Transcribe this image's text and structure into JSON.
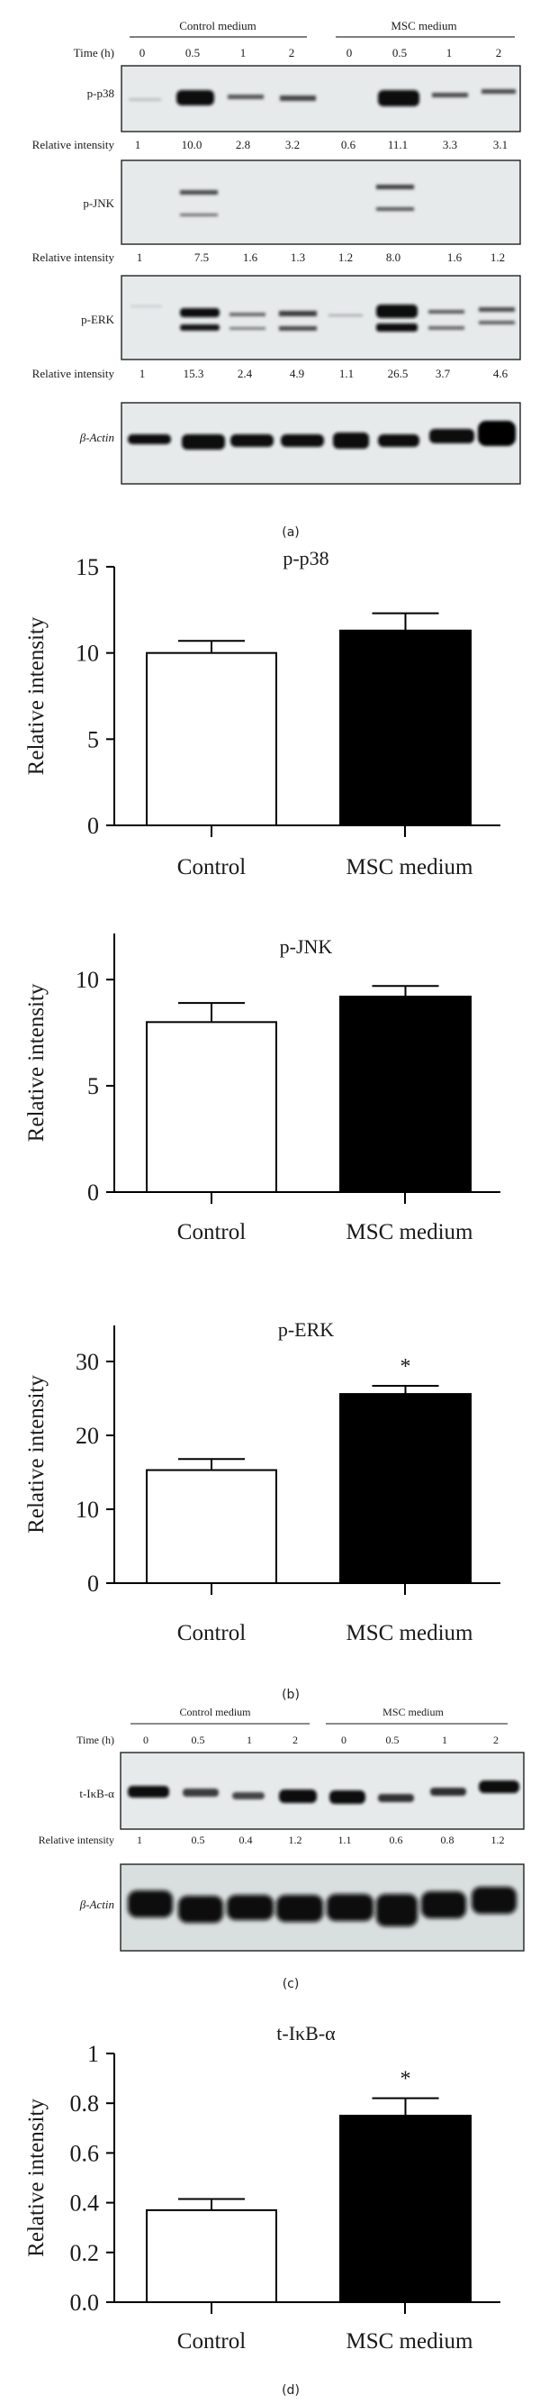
{
  "panels": {
    "a": {
      "label": "(a)"
    },
    "b": {
      "label": "(b)"
    },
    "c": {
      "label": "(c)"
    },
    "d": {
      "label": "(d)"
    }
  },
  "blot_a": {
    "groups": [
      {
        "label": "Control medium"
      },
      {
        "label": "MSC medium"
      }
    ],
    "time_label": "Time (h)",
    "time_points": [
      "0",
      "0.5",
      "1",
      "2",
      "0",
      "0.5",
      "1",
      "2"
    ],
    "ri_label": "Relative intensity",
    "blots": [
      {
        "name": "p-p38",
        "ri": [
          "1",
          "10.0",
          "2.8",
          "3.2",
          "0.6",
          "11.1",
          "3.3",
          "3.1"
        ]
      },
      {
        "name": "p-JNK",
        "ri": [
          "1",
          "7.5",
          "1.6",
          "1.3",
          "1.2",
          "8.0",
          "1.6",
          "1.2"
        ]
      },
      {
        "name": "p-ERK",
        "ri": [
          "1",
          "15.3",
          "2.4",
          "4.9",
          "1.1",
          "26.5",
          "3.7",
          "4.6"
        ]
      },
      {
        "name": "β-Actin",
        "ri": null
      }
    ]
  },
  "blot_c": {
    "groups": [
      {
        "label": "Control medium"
      },
      {
        "label": "MSC medium"
      }
    ],
    "time_label": "Time (h)",
    "time_points": [
      "0",
      "0.5",
      "1",
      "2",
      "0",
      "0.5",
      "1",
      "2"
    ],
    "ri_label": "Relative intensity",
    "blots": [
      {
        "name": "t-IκB-α",
        "ri": [
          "1",
          "0.5",
          "0.4",
          "1.2",
          "1.1",
          "0.6",
          "0.8",
          "1.2"
        ]
      },
      {
        "name": "β-Actin",
        "ri": null
      }
    ]
  },
  "colors": {
    "blot_bg": "#e6eaeb",
    "band": "#0d0d0d",
    "control_fill": "#ffffff",
    "msc_fill": "#000000"
  },
  "chart_data": [
    {
      "type": "bar",
      "title": "p-p38",
      "categories": [
        "Control",
        "MSC medium"
      ],
      "values": [
        10.0,
        11.3
      ],
      "error": [
        0.7,
        1.0
      ],
      "significance": [
        "",
        ""
      ],
      "xlabel": "",
      "ylabel": "Relative intensity",
      "yticks": [
        0,
        5,
        10,
        15
      ],
      "ytick_labels": [
        "0",
        "5",
        "10",
        "15"
      ],
      "ylim": [
        0,
        15
      ],
      "grid": false,
      "legend": null
    },
    {
      "type": "bar",
      "title": "p-JNK",
      "categories": [
        "Control",
        "MSC medium"
      ],
      "values": [
        8.0,
        9.2
      ],
      "error": [
        0.9,
        0.5
      ],
      "significance": [
        "",
        ""
      ],
      "xlabel": "",
      "ylabel": "Relative intensity",
      "yticks": [
        0,
        5,
        10
      ],
      "ytick_labels": [
        "0",
        "5",
        "10"
      ],
      "ylim": [
        0,
        12
      ],
      "grid": false,
      "legend": null
    },
    {
      "type": "bar",
      "title": "p-ERK",
      "categories": [
        "Control",
        "MSC medium"
      ],
      "values": [
        15.3,
        25.6
      ],
      "error": [
        1.5,
        1.1
      ],
      "significance": [
        "",
        "*"
      ],
      "xlabel": "",
      "ylabel": "Relative intensity",
      "yticks": [
        0,
        10,
        20,
        30
      ],
      "ytick_labels": [
        "0",
        "10",
        "20",
        "30"
      ],
      "ylim": [
        0,
        35
      ],
      "grid": false,
      "legend": null
    },
    {
      "type": "bar",
      "title": "t-IκB-α",
      "categories": [
        "Control",
        "MSC medium"
      ],
      "values": [
        0.37,
        0.75
      ],
      "error": [
        0.045,
        0.07
      ],
      "significance": [
        "",
        "*"
      ],
      "xlabel": "",
      "ylabel": "Relative intensity",
      "yticks": [
        0,
        0.2,
        0.4,
        0.6,
        0.8,
        1.0
      ],
      "ytick_labels": [
        "0.0",
        "0.2",
        "0.4",
        "0.6",
        "0.8",
        "1"
      ],
      "ylim": [
        0,
        1
      ],
      "grid": false,
      "legend": null
    }
  ]
}
